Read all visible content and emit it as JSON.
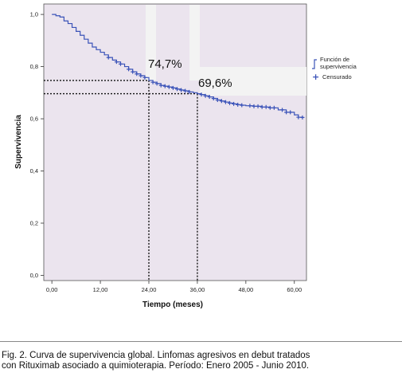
{
  "chart_data": {
    "type": "line",
    "subtype": "kaplan-meier",
    "xlabel": "Tiempo (meses)",
    "ylabel": "Supervivencia",
    "xlim": [
      -2,
      63
    ],
    "ylim": [
      -0.02,
      1.04
    ],
    "x_ticks": [
      0,
      12,
      24,
      36,
      48,
      60
    ],
    "x_tick_labels": [
      "0,00",
      "12,00",
      "24,00",
      "36,00",
      "48,00",
      "60,00"
    ],
    "y_ticks": [
      0,
      0.2,
      0.4,
      0.6,
      0.8,
      1.0
    ],
    "y_tick_labels": [
      "0,0",
      "0,2",
      "0,4",
      "0,6",
      "0,8",
      "1,0"
    ],
    "colors": {
      "survival": "#3b53b8",
      "plot_bg": "#ebe4ee",
      "reference": "#111111"
    },
    "legend": {
      "position": "right",
      "entries": [
        {
          "label": "Función de supervivencia",
          "symbol": "step-line"
        },
        {
          "label": "Censurado",
          "symbol": "plus"
        }
      ]
    },
    "series": [
      {
        "name": "Función de supervivencia",
        "steps": [
          [
            0,
            1.0
          ],
          [
            1,
            0.995
          ],
          [
            2,
            0.99
          ],
          [
            3,
            0.975
          ],
          [
            4,
            0.965
          ],
          [
            5,
            0.95
          ],
          [
            6,
            0.935
          ],
          [
            7,
            0.92
          ],
          [
            8,
            0.905
          ],
          [
            9,
            0.89
          ],
          [
            10,
            0.875
          ],
          [
            11,
            0.865
          ],
          [
            12,
            0.855
          ],
          [
            13,
            0.845
          ],
          [
            14,
            0.835
          ],
          [
            15,
            0.825
          ],
          [
            16,
            0.818
          ],
          [
            17,
            0.81
          ],
          [
            18,
            0.8
          ],
          [
            19,
            0.79
          ],
          [
            20,
            0.78
          ],
          [
            21,
            0.772
          ],
          [
            22,
            0.765
          ],
          [
            23,
            0.758
          ],
          [
            24,
            0.747
          ],
          [
            25,
            0.74
          ],
          [
            26,
            0.735
          ],
          [
            27,
            0.728
          ],
          [
            28,
            0.725
          ],
          [
            29,
            0.722
          ],
          [
            30,
            0.718
          ],
          [
            31,
            0.714
          ],
          [
            32,
            0.71
          ],
          [
            33,
            0.707
          ],
          [
            34,
            0.703
          ],
          [
            35,
            0.7
          ],
          [
            36,
            0.696
          ],
          [
            37,
            0.693
          ],
          [
            38,
            0.688
          ],
          [
            39,
            0.684
          ],
          [
            40,
            0.678
          ],
          [
            41,
            0.672
          ],
          [
            42,
            0.668
          ],
          [
            43,
            0.664
          ],
          [
            44,
            0.66
          ],
          [
            45,
            0.657
          ],
          [
            46,
            0.654
          ],
          [
            47,
            0.652
          ],
          [
            48,
            0.65
          ],
          [
            50,
            0.648
          ],
          [
            52,
            0.645
          ],
          [
            54,
            0.642
          ],
          [
            56,
            0.634
          ],
          [
            58,
            0.625
          ],
          [
            60,
            0.615
          ],
          [
            61,
            0.606
          ],
          [
            62,
            0.605
          ]
        ],
        "censored_x": [
          14,
          16,
          17,
          19,
          20,
          21,
          22,
          23,
          25,
          26,
          27,
          28,
          29,
          30,
          31,
          32,
          33,
          34,
          37,
          38,
          39,
          40,
          41,
          42,
          43,
          44,
          45,
          46,
          47,
          49,
          50,
          51,
          52,
          53,
          54,
          55,
          57,
          58,
          59,
          61,
          62
        ]
      }
    ],
    "reference_lines": [
      {
        "x": 24,
        "y": 0.747,
        "label": "74,7%"
      },
      {
        "x": 36,
        "y": 0.696,
        "label": "69,6%"
      }
    ]
  },
  "caption": {
    "line1": "Fig. 2. Curva de supervivencia global. Linfomas agresivos en debut tratados",
    "line2": "con Rituximab asociado a quimioterapia. Período: Enero 2005 - Junio 2010."
  }
}
